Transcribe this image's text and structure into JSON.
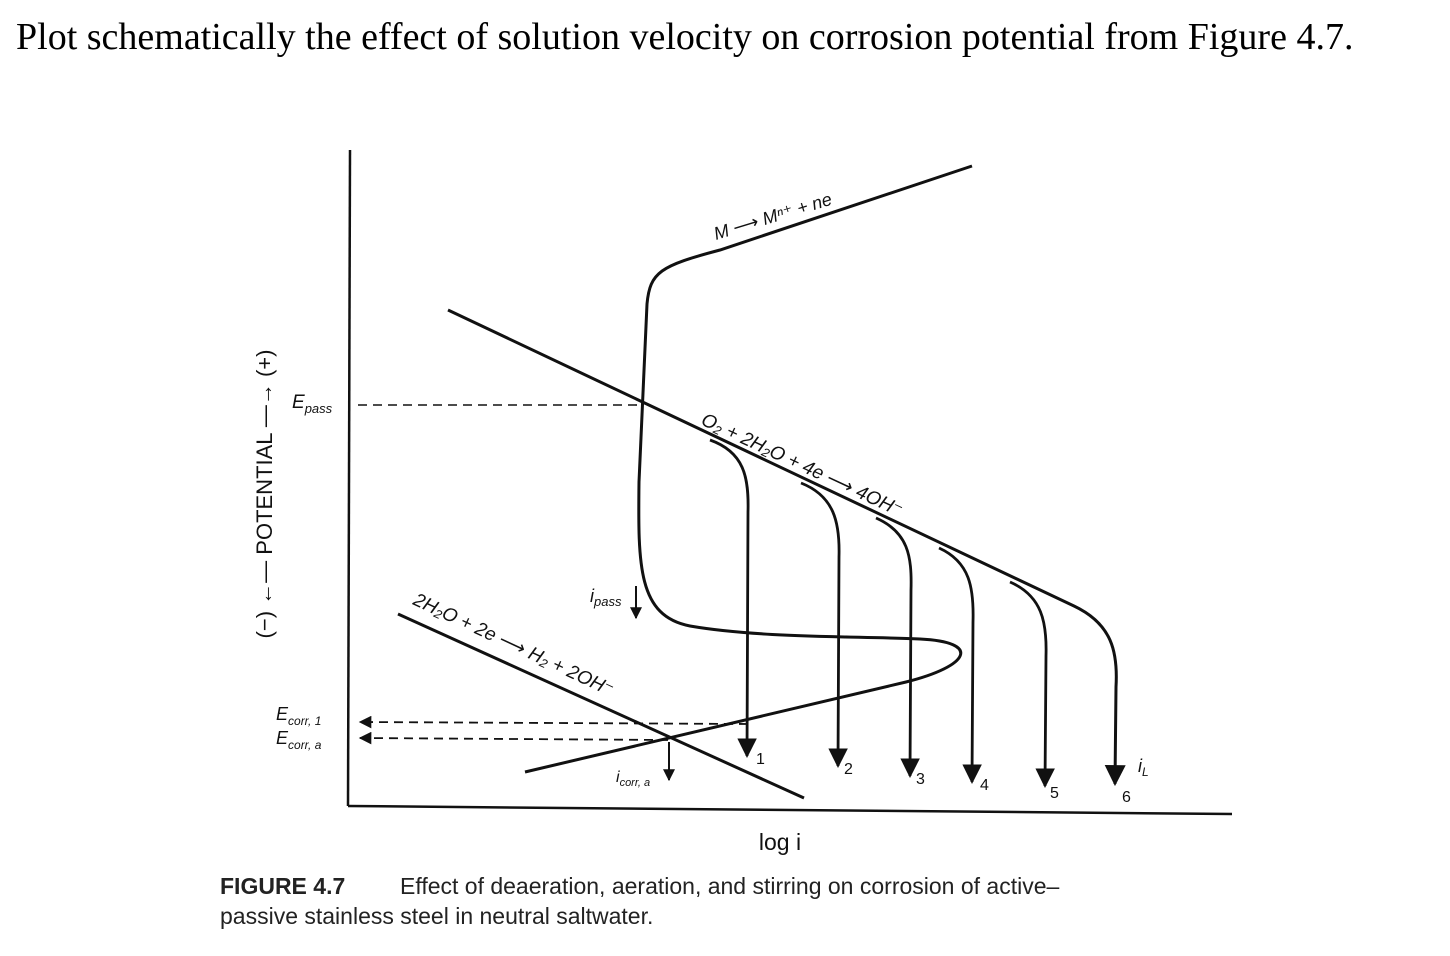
{
  "question": {
    "text": "Plot schematically the effect of solution velocity on corrosion potential from Figure 4.7."
  },
  "figure": {
    "y_axis_label": "(−) ←— POTENTIAL —→ (+)",
    "x_axis_label": "log i",
    "e_pass": "E",
    "e_pass_sub": "pass",
    "e_corr_1": "E",
    "e_corr_1_sub": "corr, 1",
    "e_corr_a": "E",
    "e_corr_a_sub": "corr, a",
    "i_pass": "i",
    "i_pass_sub": "pass",
    "i_corr_a": "i",
    "i_corr_a_sub": "corr, a",
    "i_L": "i",
    "i_L_sub": "L",
    "anodic_reaction": "M ⟶ Mⁿ⁺ + ne",
    "oxygen_reaction": "O₂ + 2H₂O + 4e ⟶ 4OH⁻",
    "hydrogen_reaction": "2H₂O + 2e ⟶ H₂ + 2OH⁻",
    "curve_numbers": [
      "1",
      "2",
      "3",
      "4",
      "5",
      "6"
    ],
    "caption_label": "FIGURE 4.7",
    "caption_line1": "Effect of deaeration, aeration, and stirring on corrosion of active–",
    "caption_line2": "passive stainless steel in neutral saltwater."
  }
}
